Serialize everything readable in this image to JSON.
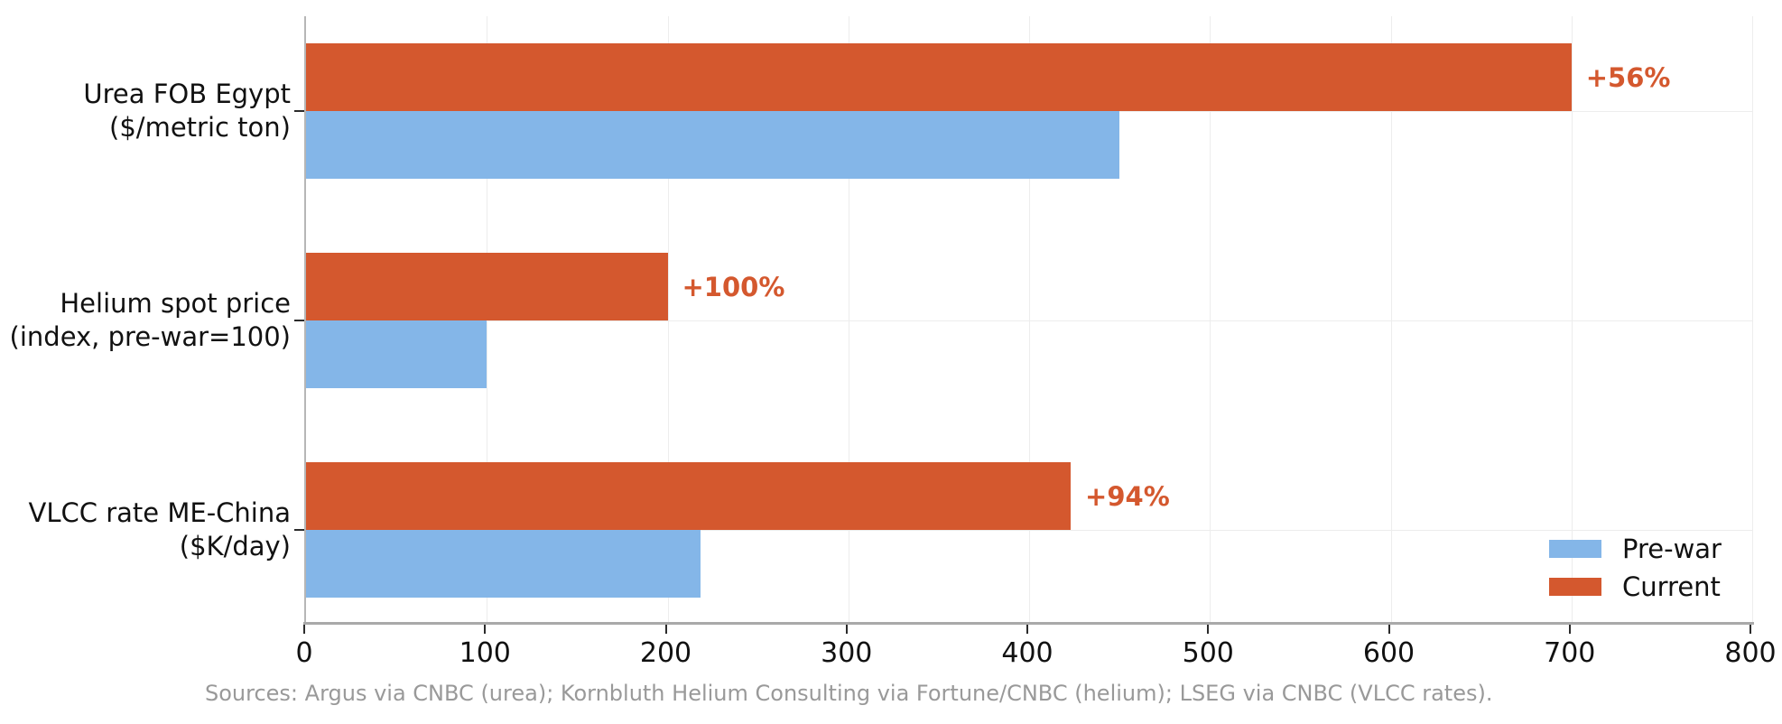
{
  "chart_data": {
    "type": "bar",
    "orientation": "horizontal",
    "title": "",
    "xlabel": "",
    "ylabel": "",
    "xlim": [
      0,
      800
    ],
    "xticks": [
      0,
      100,
      200,
      300,
      400,
      500,
      600,
      700,
      800
    ],
    "grid": "on",
    "categories": [
      {
        "line1": "Urea FOB Egypt",
        "line2": "($/metric ton)"
      },
      {
        "line1": "Helium spot price",
        "line2": "(index, pre-war=100)"
      },
      {
        "line1": "VLCC rate ME-China",
        "line2": "($K/day)"
      }
    ],
    "series": [
      {
        "name": "Pre-war",
        "color": "#84b6e8",
        "values": [
          450,
          100,
          218
        ]
      },
      {
        "name": "Current",
        "color": "#d4582e",
        "values": [
          700,
          200,
          423
        ]
      }
    ],
    "bar_annotations": [
      {
        "label": "+56%"
      },
      {
        "label": "+100%"
      },
      {
        "label": "+94%"
      }
    ],
    "annotation_color": "#d4582e",
    "legend": {
      "position": "lower-right",
      "entries": [
        "Pre-war",
        "Current"
      ]
    },
    "source_note": "Sources: Argus via CNBC (urea); Kornbluth Helium Consulting via Fortune/CNBC (helium); LSEG via CNBC (VLCC rates)."
  },
  "colors": {
    "prewar": "#84b6e8",
    "current": "#d4582e",
    "axis_line": "#a9a9a9",
    "tick_mark": "#2b2b2b",
    "gridline": "#ededed",
    "source_text": "#999999"
  }
}
